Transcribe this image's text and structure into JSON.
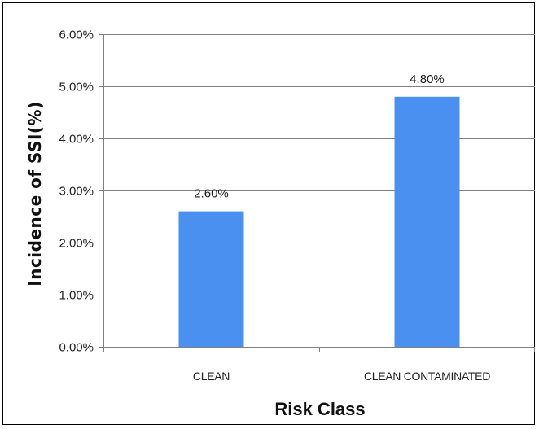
{
  "chart_data": {
    "type": "bar",
    "categories": [
      "CLEAN",
      "CLEAN CONTAMINATED"
    ],
    "values": [
      2.6,
      4.8
    ],
    "data_labels": [
      "2.60%",
      "4.80%"
    ],
    "xlabel": "Risk Class",
    "ylabel": "Incidence of SSI(%)",
    "ylim": [
      0,
      6
    ],
    "yticks": [
      0,
      1,
      2,
      3,
      4,
      5,
      6
    ],
    "ytick_labels": [
      "0.00%",
      "1.00%",
      "2.00%",
      "3.00%",
      "4.00%",
      "5.00%",
      "6.00%"
    ],
    "grid": true,
    "legend": "none",
    "bar_color": "#4a90f0",
    "grid_color": "#808080"
  }
}
